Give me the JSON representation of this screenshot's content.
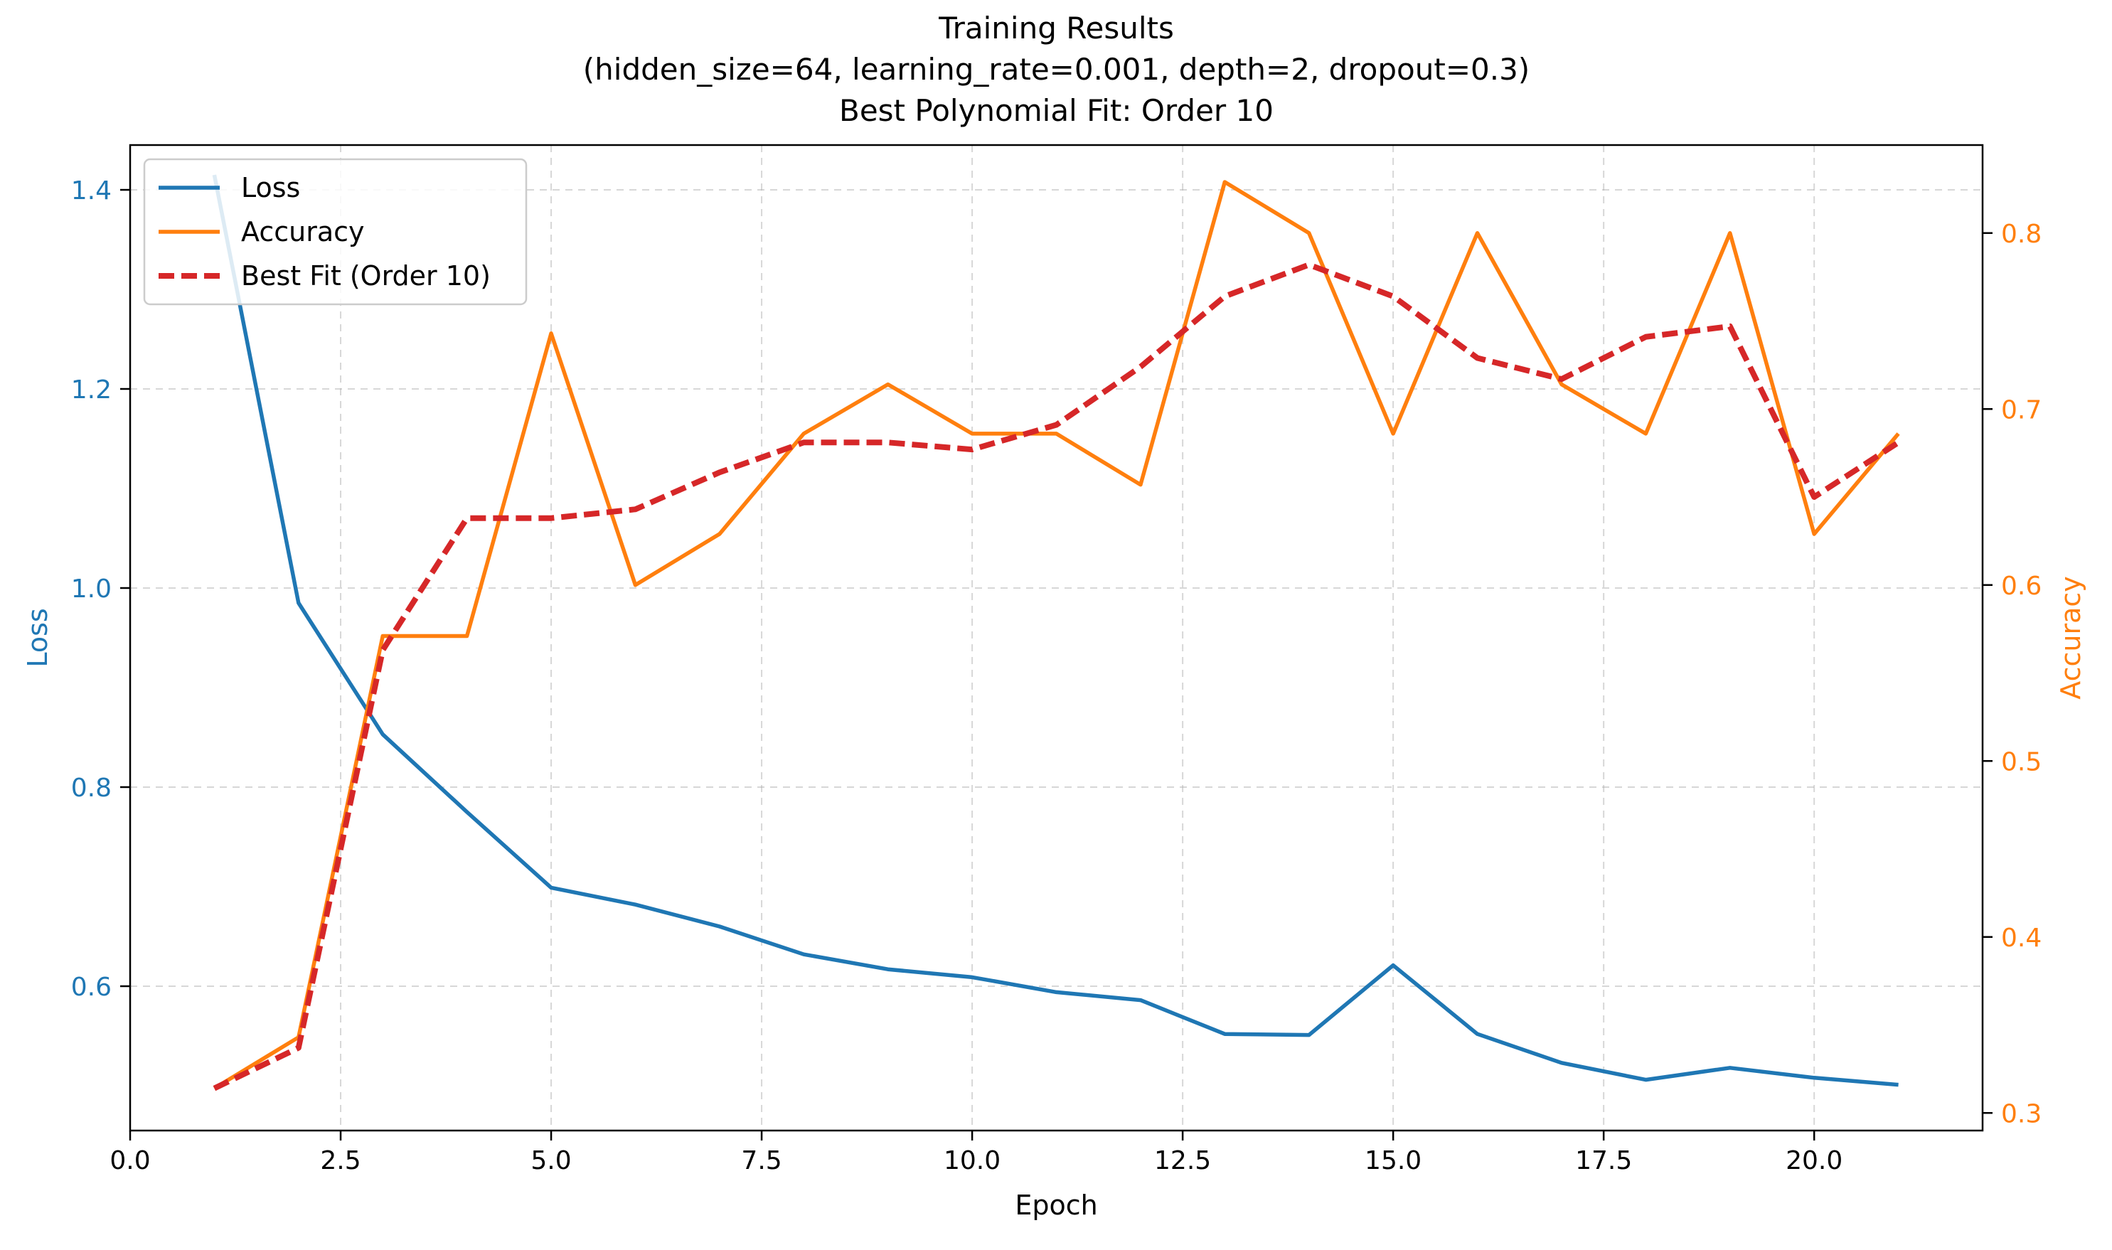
{
  "chart_data": {
    "type": "line",
    "title_lines": [
      "Training Results",
      "(hidden_size=64, learning_rate=0.001, depth=2, dropout=0.3)",
      "Best Polynomial Fit: Order 10"
    ],
    "xlabel": "Epoch",
    "ylabel_left": "Loss",
    "ylabel_right": "Accuracy",
    "xlim": [
      0,
      22
    ],
    "ylim_left": [
      0.455,
      1.445
    ],
    "ylim_right": [
      0.29,
      0.85
    ],
    "x_ticks": [
      0.0,
      2.5,
      5.0,
      7.5,
      10.0,
      12.5,
      15.0,
      17.5,
      20.0
    ],
    "x_tick_labels": [
      "0.0",
      "2.5",
      "5.0",
      "7.5",
      "10.0",
      "12.5",
      "15.0",
      "17.5",
      "20.0"
    ],
    "y_left_ticks": [
      0.6,
      0.8,
      1.0,
      1.2,
      1.4
    ],
    "y_left_tick_labels": [
      "0.6",
      "0.8",
      "1.0",
      "1.2",
      "1.4"
    ],
    "y_right_ticks": [
      0.3,
      0.4,
      0.5,
      0.6,
      0.7,
      0.8
    ],
    "y_right_tick_labels": [
      "0.3",
      "0.4",
      "0.5",
      "0.6",
      "0.7",
      "0.8"
    ],
    "grid": true,
    "legend_position": "top-left",
    "x": [
      1,
      2,
      3,
      4,
      5,
      6,
      7,
      8,
      9,
      10,
      11,
      12,
      13,
      14,
      15,
      16,
      17,
      18,
      19,
      20,
      21
    ],
    "series": [
      {
        "name": "Loss",
        "axis": "left",
        "color": "#1f77b4",
        "style": "solid",
        "values": [
          1.415,
          0.985,
          0.853,
          0.775,
          0.699,
          0.682,
          0.66,
          0.632,
          0.617,
          0.609,
          0.594,
          0.586,
          0.552,
          0.551,
          0.621,
          0.552,
          0.523,
          0.506,
          0.518,
          0.508,
          0.501
        ]
      },
      {
        "name": "Accuracy",
        "axis": "right",
        "color": "#ff7f0e",
        "style": "solid",
        "values": [
          0.314,
          0.343,
          0.571,
          0.571,
          0.743,
          0.6,
          0.629,
          0.686,
          0.714,
          0.686,
          0.686,
          0.657,
          0.829,
          0.8,
          0.686,
          0.8,
          0.714,
          0.686,
          0.8,
          0.629,
          0.686
        ]
      },
      {
        "name": "Best Fit (Order 10)",
        "axis": "right",
        "color": "#d62728",
        "style": "dashed",
        "values": [
          0.314,
          0.337,
          0.563,
          0.638,
          0.638,
          0.643,
          0.664,
          0.681,
          0.681,
          0.677,
          0.691,
          0.724,
          0.764,
          0.782,
          0.764,
          0.729,
          0.717,
          0.741,
          0.747,
          0.65,
          0.681
        ]
      }
    ]
  }
}
